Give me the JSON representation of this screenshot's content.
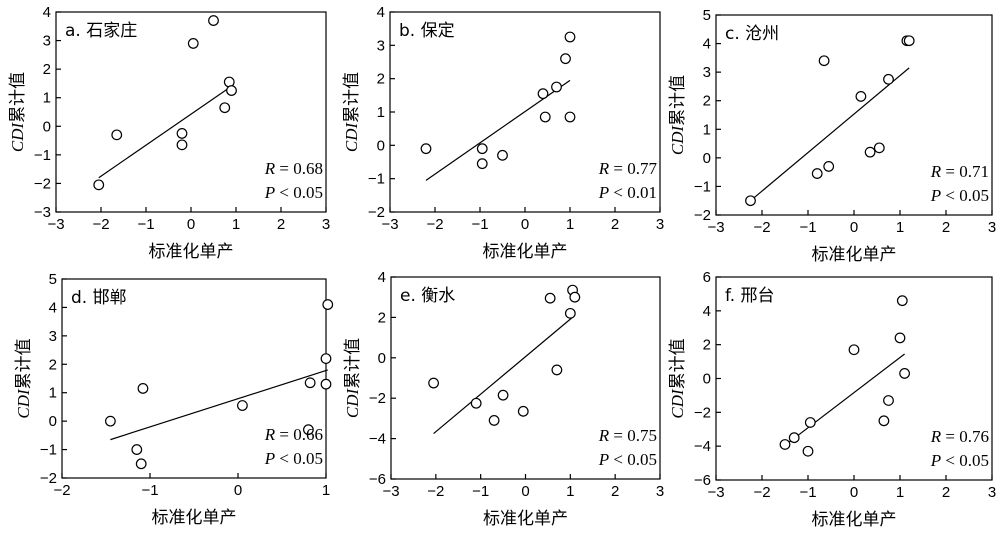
{
  "chart_data": [
    {
      "type": "scatter",
      "title": "a. 石家庄",
      "xlabel": "标准化单产",
      "ylabel_italic": "CDI",
      "ylabel_rest": "累计值",
      "xlim": [
        -3,
        3
      ],
      "ylim": [
        -3,
        4
      ],
      "xticks": [
        -3,
        -2,
        -1,
        0,
        1,
        2,
        3
      ],
      "yticks": [
        -3,
        -2,
        -1,
        0,
        1,
        2,
        3,
        4
      ],
      "points": [
        [
          -2.05,
          -2.05
        ],
        [
          -1.65,
          -0.3
        ],
        [
          -0.2,
          -0.25
        ],
        [
          -0.2,
          -0.65
        ],
        [
          0.05,
          2.9
        ],
        [
          0.5,
          3.7
        ],
        [
          0.75,
          0.65
        ],
        [
          0.85,
          1.55
        ],
        [
          0.9,
          1.25
        ]
      ],
      "fit": [
        [
          -2.05,
          -1.8
        ],
        [
          0.9,
          1.4
        ]
      ],
      "r_label": "R",
      "r_value": "= 0.68",
      "p_label": "P",
      "p_value": "< 0.05"
    },
    {
      "type": "scatter",
      "title": "b. 保定",
      "xlabel": "标准化单产",
      "ylabel_italic": "CDI",
      "ylabel_rest": "累计值",
      "xlim": [
        -3,
        3
      ],
      "ylim": [
        -2,
        4
      ],
      "xticks": [
        -3,
        -2,
        -1,
        0,
        1,
        2,
        3
      ],
      "yticks": [
        -2,
        -1,
        0,
        1,
        2,
        3,
        4
      ],
      "points": [
        [
          -2.2,
          -0.1
        ],
        [
          -0.95,
          -0.1
        ],
        [
          -0.95,
          -0.55
        ],
        [
          -0.5,
          -0.3
        ],
        [
          0.4,
          1.55
        ],
        [
          0.45,
          0.85
        ],
        [
          0.7,
          1.75
        ],
        [
          0.9,
          2.6
        ],
        [
          1.0,
          3.25
        ],
        [
          1.0,
          0.85
        ]
      ],
      "fit": [
        [
          -2.2,
          -1.05
        ],
        [
          1.0,
          1.95
        ]
      ],
      "r_label": "R",
      "r_value": "= 0.77",
      "p_label": "P",
      "p_value": "< 0.01"
    },
    {
      "type": "scatter",
      "title": "c. 沧州",
      "xlabel": "标准化单产",
      "ylabel_italic": "CDI",
      "ylabel_rest": "累计值",
      "xlim": [
        -3,
        3
      ],
      "ylim": [
        -2,
        5
      ],
      "xticks": [
        -3,
        -2,
        -1,
        0,
        1,
        2,
        3
      ],
      "yticks": [
        -2,
        -1,
        0,
        1,
        2,
        3,
        4,
        5
      ],
      "points": [
        [
          -2.25,
          -1.5
        ],
        [
          -0.8,
          -0.55
        ],
        [
          -0.65,
          3.4
        ],
        [
          -0.55,
          -0.3
        ],
        [
          0.15,
          2.15
        ],
        [
          0.35,
          0.2
        ],
        [
          0.55,
          0.35
        ],
        [
          0.75,
          2.75
        ],
        [
          1.15,
          4.1
        ],
        [
          1.2,
          4.1
        ]
      ],
      "fit": [
        [
          -2.25,
          -1.5
        ],
        [
          1.2,
          3.15
        ]
      ],
      "r_label": "R",
      "r_value": "= 0.71",
      "p_label": "P",
      "p_value": "< 0.05"
    },
    {
      "type": "scatter",
      "title": "d. 邯郸",
      "xlabel": "标准化单产",
      "ylabel_italic": "CDI",
      "ylabel_rest": "累计值",
      "xlim": [
        -2,
        1
      ],
      "ylim": [
        -2,
        5
      ],
      "xticks": [
        -2,
        -1,
        0,
        1
      ],
      "yticks": [
        -2,
        -1,
        0,
        1,
        2,
        3,
        4,
        5
      ],
      "points": [
        [
          -1.45,
          0.0
        ],
        [
          -1.15,
          -1.0
        ],
        [
          -1.1,
          -1.5
        ],
        [
          -1.08,
          1.15
        ],
        [
          0.05,
          0.55
        ],
        [
          0.8,
          -0.3
        ],
        [
          0.82,
          1.35
        ],
        [
          1.0,
          1.3
        ],
        [
          1.0,
          2.2
        ],
        [
          1.02,
          4.1
        ]
      ],
      "fit": [
        [
          -1.45,
          -0.65
        ],
        [
          1.02,
          1.8
        ]
      ],
      "r_label": "R",
      "r_value": "= 0.66",
      "p_label": "P",
      "p_value": "< 0.05"
    },
    {
      "type": "scatter",
      "title": "e. 衡水",
      "xlabel": "标准化单产",
      "ylabel_italic": "CDI",
      "ylabel_rest": "累计值",
      "xlim": [
        -3,
        3
      ],
      "ylim": [
        -6,
        4
      ],
      "xticks": [
        -3,
        -2,
        -1,
        0,
        1,
        2,
        3
      ],
      "yticks": [
        -6,
        -4,
        -2,
        0,
        2,
        4
      ],
      "points": [
        [
          -2.05,
          -1.25
        ],
        [
          -1.1,
          -2.25
        ],
        [
          -0.7,
          -3.1
        ],
        [
          -0.5,
          -1.85
        ],
        [
          -0.05,
          -2.65
        ],
        [
          0.55,
          2.95
        ],
        [
          0.7,
          -0.6
        ],
        [
          1.0,
          2.2
        ],
        [
          1.05,
          3.35
        ],
        [
          1.1,
          3.0
        ]
      ],
      "fit": [
        [
          -2.05,
          -3.75
        ],
        [
          1.1,
          2.1
        ]
      ],
      "r_label": "R",
      "r_value": "= 0.75",
      "p_label": "P",
      "p_value": "< 0.05"
    },
    {
      "type": "scatter",
      "title": "f. 邢台",
      "xlabel": "标准化单产",
      "ylabel_italic": "CDI",
      "ylabel_rest": "累计值",
      "xlim": [
        -3,
        3
      ],
      "ylim": [
        -6,
        6
      ],
      "xticks": [
        -3,
        -2,
        -1,
        0,
        1,
        2,
        3
      ],
      "yticks": [
        -6,
        -4,
        -2,
        0,
        2,
        4,
        6
      ],
      "points": [
        [
          -1.5,
          -3.9
        ],
        [
          -1.3,
          -3.5
        ],
        [
          -1.0,
          -4.3
        ],
        [
          -0.95,
          -2.6
        ],
        [
          0.0,
          1.7
        ],
        [
          0.65,
          -2.5
        ],
        [
          0.75,
          -1.3
        ],
        [
          1.0,
          2.4
        ],
        [
          1.05,
          4.6
        ],
        [
          1.1,
          0.3
        ]
      ],
      "fit": [
        [
          -1.5,
          -3.95
        ],
        [
          1.1,
          1.45
        ]
      ],
      "r_label": "R",
      "r_value": "= 0.76",
      "p_label": "P",
      "p_value": "< 0.05"
    }
  ]
}
